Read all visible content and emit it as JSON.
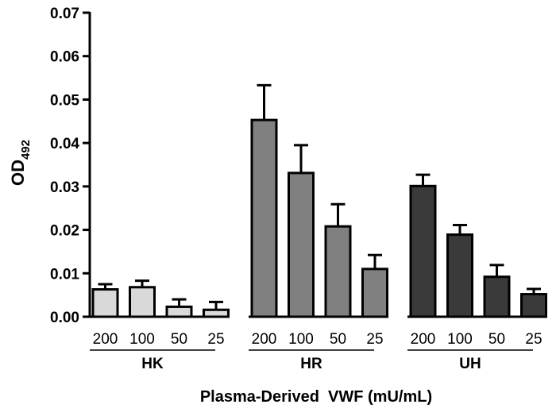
{
  "chart_data": {
    "type": "bar",
    "title": "",
    "xlabel": "Plasma-Derived  VWF (mU/mL)",
    "ylabel": {
      "main": "OD",
      "subscript": "492"
    },
    "ylim": [
      0,
      0.07
    ],
    "yticks": [
      "0.00",
      "0.01",
      "0.02",
      "0.03",
      "0.04",
      "0.05",
      "0.06",
      "0.07"
    ],
    "grid": false,
    "legend": "none",
    "groups": [
      {
        "name": "HK",
        "color": "#d9d9d9",
        "categories": [
          "200",
          "100",
          "50",
          "25"
        ],
        "values": [
          0.0063,
          0.0068,
          0.0023,
          0.0016
        ],
        "errors": [
          0.0012,
          0.0015,
          0.0017,
          0.0018
        ]
      },
      {
        "name": "HR",
        "color": "#808080",
        "categories": [
          "200",
          "100",
          "50",
          "25"
        ],
        "values": [
          0.0453,
          0.0331,
          0.0208,
          0.011
        ],
        "errors": [
          0.008,
          0.0064,
          0.0051,
          0.0032
        ]
      },
      {
        "name": "UH",
        "color": "#3a3a3a",
        "categories": [
          "200",
          "100",
          "50",
          "25"
        ],
        "values": [
          0.0301,
          0.0189,
          0.0092,
          0.0052
        ],
        "errors": [
          0.0026,
          0.0022,
          0.0027,
          0.0012
        ]
      }
    ]
  }
}
